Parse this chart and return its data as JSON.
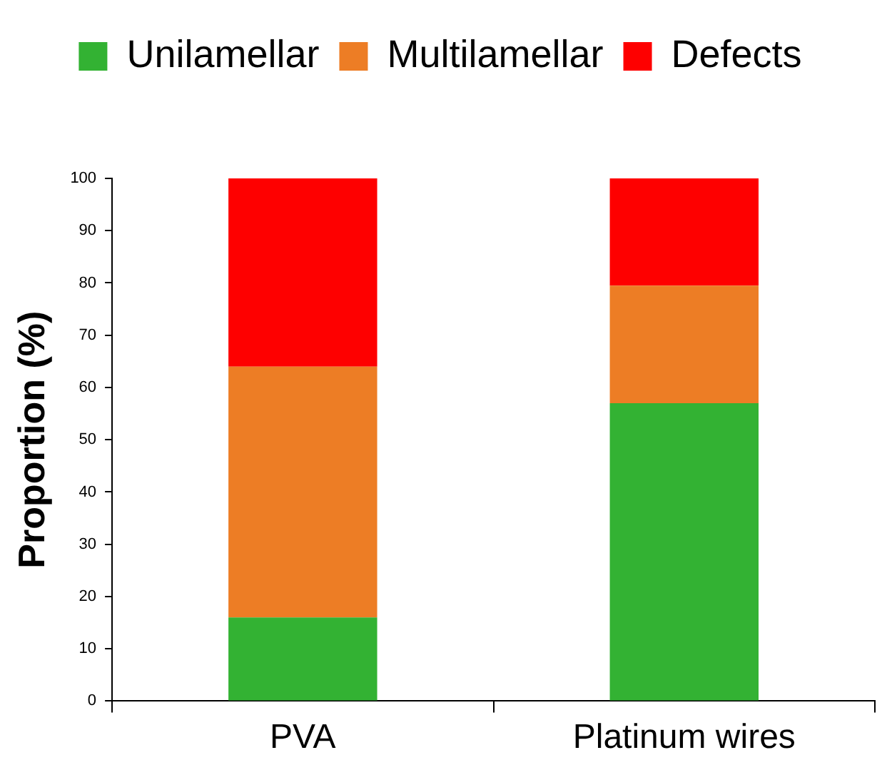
{
  "chart_data": {
    "type": "bar",
    "stacked": true,
    "categories": [
      "PVA",
      "Platinum wires"
    ],
    "ylabel": "Proportion (%)",
    "series": [
      {
        "name": "Unilamellar",
        "color": "#33b233",
        "values": [
          16,
          57
        ]
      },
      {
        "name": "Multilamellar",
        "color": "#ed7d25",
        "values": [
          48,
          22.5
        ]
      },
      {
        "name": "Defects",
        "color": "#fe0000",
        "values": [
          36,
          20.5
        ]
      }
    ],
    "ylim": [
      0,
      100
    ],
    "yticks": [
      0,
      10,
      20,
      30,
      40,
      50,
      60,
      70,
      80,
      90,
      100
    ],
    "grid": false,
    "legend": "top"
  }
}
